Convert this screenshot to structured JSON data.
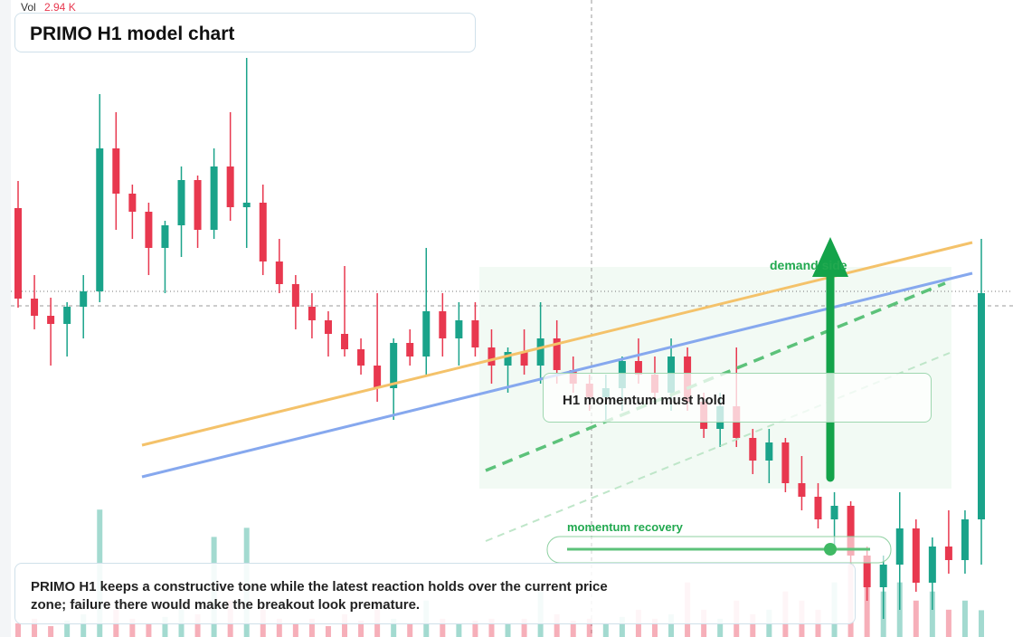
{
  "chart_data": {
    "type": "candlestick",
    "title": "PRIMO H1 model chart",
    "volume_caption": "Vol",
    "volume_value": "2.94 K",
    "up_color": "#1aa38a",
    "down_color": "#e8384f",
    "ylim": [
      0,
      70.4
    ],
    "volume_lim": [
      0,
      35
    ],
    "ohlc": [
      [
        47.4,
        50.4,
        36.4,
        37.4
      ],
      [
        37.4,
        40,
        34,
        35.5
      ],
      [
        35.5,
        37.5,
        30,
        34.6
      ],
      [
        34.6,
        37,
        31,
        36.5
      ],
      [
        36.5,
        40,
        33,
        38.2
      ],
      [
        38.2,
        60,
        37,
        54
      ],
      [
        54,
        58,
        45,
        49
      ],
      [
        49,
        50,
        44,
        47
      ],
      [
        47,
        48,
        40,
        43
      ],
      [
        43,
        46,
        38,
        45.5
      ],
      [
        45.5,
        52,
        42,
        50.5
      ],
      [
        50.5,
        51,
        43,
        45
      ],
      [
        45,
        54,
        44,
        52
      ],
      [
        52,
        58,
        46,
        47.5
      ],
      [
        47.5,
        64,
        43,
        48
      ],
      [
        48,
        50,
        40,
        41.5
      ],
      [
        41.5,
        44,
        38,
        39
      ],
      [
        39,
        40,
        34,
        36.5
      ],
      [
        36.5,
        38,
        33,
        35
      ],
      [
        35,
        36,
        31,
        33.5
      ],
      [
        33.5,
        41,
        31,
        31.8
      ],
      [
        31.8,
        33,
        29,
        30
      ],
      [
        30,
        38,
        26,
        27.5
      ],
      [
        27.5,
        33,
        24,
        32.5
      ],
      [
        32.5,
        34,
        30,
        31
      ],
      [
        31,
        43,
        29,
        36
      ],
      [
        36,
        38,
        31,
        33
      ],
      [
        33,
        37,
        30,
        35
      ],
      [
        35,
        37,
        31,
        32
      ],
      [
        32,
        34,
        28,
        30
      ],
      [
        30,
        32,
        27,
        31.5
      ],
      [
        31.5,
        34,
        29,
        30
      ],
      [
        30,
        37,
        28,
        33
      ],
      [
        33,
        35,
        28,
        29.5
      ],
      [
        29.5,
        31,
        27,
        28
      ],
      [
        28,
        29,
        25,
        26.5
      ],
      [
        26.5,
        29,
        24,
        27.5
      ],
      [
        27.5,
        31,
        25,
        30.5
      ],
      [
        30.5,
        33,
        28,
        29
      ],
      [
        29,
        31,
        26,
        27
      ],
      [
        27,
        33,
        25,
        31
      ],
      [
        31,
        32,
        25,
        26
      ],
      [
        26,
        27,
        22,
        23
      ],
      [
        23,
        27,
        21,
        25.5
      ],
      [
        25.5,
        32,
        21,
        22
      ],
      [
        22,
        23,
        18,
        19.5
      ],
      [
        19.5,
        23,
        17,
        21.5
      ],
      [
        21.5,
        22,
        16,
        17
      ],
      [
        17,
        20,
        14,
        15.5
      ],
      [
        15.5,
        17,
        12,
        13
      ],
      [
        13,
        16,
        10,
        14.5
      ],
      [
        14.5,
        15,
        8,
        9
      ],
      [
        9,
        10,
        4,
        5.5
      ],
      [
        5.5,
        9,
        2,
        8
      ],
      [
        8,
        16,
        3,
        12
      ],
      [
        12,
        13,
        5,
        6
      ],
      [
        6,
        11,
        3,
        10
      ],
      [
        10,
        14,
        7,
        8.5
      ],
      [
        8.5,
        14,
        7,
        13
      ],
      [
        13,
        44,
        8,
        38
      ]
    ],
    "volumes": [
      1.5,
      2,
      1.2,
      1.8,
      2.5,
      14,
      3,
      2,
      1.5,
      2.2,
      3,
      2.5,
      11,
      4,
      12,
      3,
      2,
      1.5,
      2,
      1.2,
      2.5,
      1.8,
      3,
      2,
      1.5,
      4,
      2,
      1.5,
      1.8,
      2,
      1.5,
      2,
      5,
      2.5,
      1.8,
      2,
      1.5,
      2.2,
      3,
      2,
      2.5,
      6,
      3,
      2,
      4,
      2.5,
      3,
      5,
      4,
      3,
      6,
      8,
      7,
      5,
      6,
      4,
      5,
      3,
      4,
      2.94
    ],
    "annotations": {
      "zone_label": "demand side",
      "box_label": "H1 momentum must hold",
      "slider_label": "momentum recovery",
      "note": "PRIMO H1 keeps a constructive tone while the latest reaction holds over the current price zone; failure there would make the breakout look premature."
    }
  }
}
